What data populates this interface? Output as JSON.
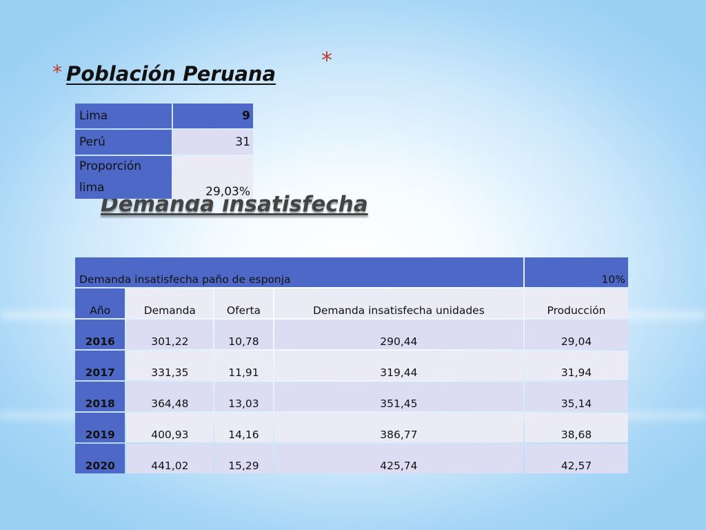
{
  "slide": {
    "bullet_symbol": "*",
    "title_population": "Población Peruana",
    "title_demand": "Demanda insatisfecha"
  },
  "population_table": {
    "rows": [
      {
        "label": "Lima",
        "value": "9"
      },
      {
        "label": "Perú",
        "value": "31"
      },
      {
        "label": "Proporción lima",
        "value": "29,03%"
      }
    ]
  },
  "demand_table": {
    "title": "Demanda insatisfecha paño de esponja",
    "percent": "10%",
    "columns": [
      "Año",
      "Demanda",
      "Oferta",
      "Demanda insatisfecha unidades",
      "Producción"
    ],
    "rows": [
      [
        "2016",
        "301,22",
        "10,78",
        "290,44",
        "29,04"
      ],
      [
        "2017",
        "331,35",
        "11,91",
        "319,44",
        "31,94"
      ],
      [
        "2018",
        "364,48",
        "13,03",
        "351,45",
        "35,14"
      ],
      [
        "2019",
        "400,93",
        "14,16",
        "386,77",
        "38,68"
      ],
      [
        "2020",
        "441,02",
        "15,29",
        "425,74",
        "42,57"
      ]
    ]
  },
  "colors": {
    "header_blue": "#4e68c8",
    "row_light": "#dcdcf2",
    "row_lighter": "#ebebf6",
    "bullet_red": "#c0392b"
  }
}
